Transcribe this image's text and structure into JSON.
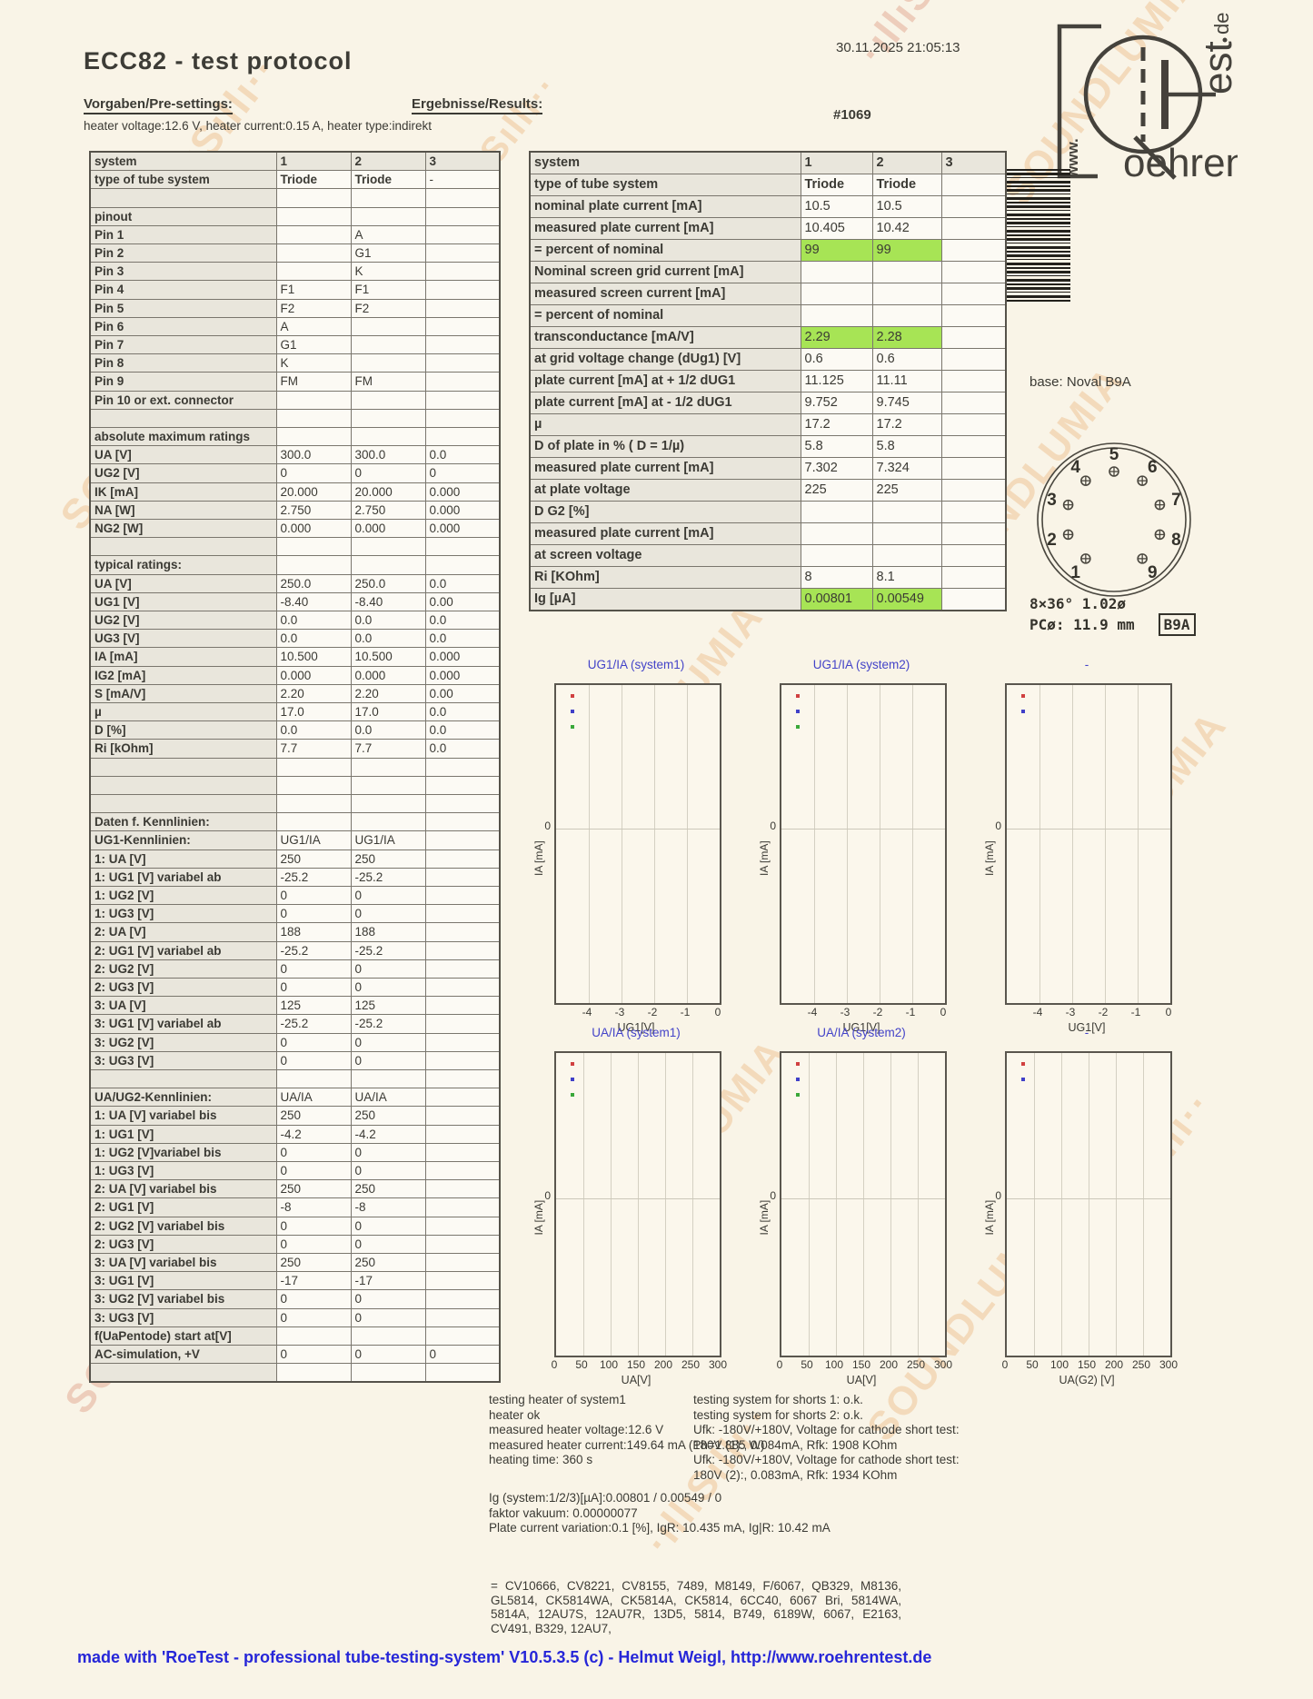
{
  "page": {
    "title": "ECC82  -  test protocol",
    "datetime": "30.11.2025  21:05:13",
    "serial": "#1069",
    "presets_heading": "Vorgaben/Pre-settings:",
    "results_heading": "Ergebnisse/Results:",
    "heater_line": "heater voltage:12.6 V, heater current:0.15 A, heater type:indirekt",
    "base_label": "base: Noval B9A",
    "footer": "made with 'RoeTest - professional tube-testing-system' V10.5.3.5 (c) - Helmut Weigl, http://www.roehrentest.de"
  },
  "logo": {
    "www": "www.",
    "r": "R",
    "oehren": "oehren",
    "est": "est",
    "de": "de"
  },
  "socket": {
    "pins": [
      1,
      2,
      3,
      4,
      5,
      6,
      7,
      8,
      9
    ],
    "geometry_line1": "8×36°  1.02ø",
    "geometry_line2": "PCø: 11.9 mm",
    "base_badge": "B9A"
  },
  "presets_table": {
    "headers": [
      "system",
      "1",
      "2",
      "3"
    ],
    "rows": [
      [
        "type of tube system",
        "Triode",
        "Triode",
        "-"
      ],
      [
        "",
        "",
        "",
        ""
      ],
      [
        "pinout",
        "",
        "",
        ""
      ],
      [
        "Pin 1",
        "",
        "A",
        ""
      ],
      [
        "Pin 2",
        "",
        "G1",
        ""
      ],
      [
        "Pin 3",
        "",
        "K",
        ""
      ],
      [
        "Pin 4",
        "F1",
        "F1",
        ""
      ],
      [
        "Pin 5",
        "F2",
        "F2",
        ""
      ],
      [
        "Pin 6",
        "A",
        "",
        ""
      ],
      [
        "Pin 7",
        "G1",
        "",
        ""
      ],
      [
        "Pin 8",
        "K",
        "",
        ""
      ],
      [
        "Pin 9",
        "FM",
        "FM",
        ""
      ],
      [
        "Pin 10 or ext. connector",
        "",
        "",
        ""
      ],
      [
        "",
        "",
        "",
        ""
      ],
      [
        "absolute maximum ratings",
        "",
        "",
        ""
      ],
      [
        "UA [V]",
        "300.0",
        "300.0",
        "0.0"
      ],
      [
        "UG2 [V]",
        "0",
        "0",
        "0"
      ],
      [
        "IK [mA]",
        "20.000",
        "20.000",
        "0.000"
      ],
      [
        "NA [W]",
        "2.750",
        "2.750",
        "0.000"
      ],
      [
        "NG2 [W]",
        "0.000",
        "0.000",
        "0.000"
      ],
      [
        "",
        "",
        "",
        ""
      ],
      [
        "typical ratings:",
        "",
        "",
        ""
      ],
      [
        "UA [V]",
        "250.0",
        "250.0",
        "0.0"
      ],
      [
        "UG1 [V]",
        "-8.40",
        "-8.40",
        "0.00"
      ],
      [
        "UG2 [V]",
        "0.0",
        "0.0",
        "0.0"
      ],
      [
        "UG3 [V]",
        "0.0",
        "0.0",
        "0.0"
      ],
      [
        "IA [mA]",
        "10.500",
        "10.500",
        "0.000"
      ],
      [
        "IG2 [mA]",
        "0.000",
        "0.000",
        "0.000"
      ],
      [
        "S [mA/V]",
        "2.20",
        "2.20",
        "0.00"
      ],
      [
        "µ",
        "17.0",
        "17.0",
        "0.0"
      ],
      [
        "D [%]",
        "0.0",
        "0.0",
        "0.0"
      ],
      [
        "Ri [kOhm]",
        "7.7",
        "7.7",
        "0.0"
      ],
      [
        "",
        "",
        "",
        ""
      ],
      [
        "",
        "",
        "",
        ""
      ],
      [
        "",
        "",
        "",
        ""
      ],
      [
        "Daten f. Kennlinien:",
        "",
        "",
        ""
      ],
      [
        "UG1-Kennlinien:",
        "UG1/IA",
        "UG1/IA",
        ""
      ],
      [
        "1: UA [V]",
        "250",
        "250",
        ""
      ],
      [
        "1: UG1 [V] variabel ab",
        "-25.2",
        "-25.2",
        ""
      ],
      [
        "1: UG2 [V]",
        "0",
        "0",
        ""
      ],
      [
        "1: UG3 [V]",
        "0",
        "0",
        ""
      ],
      [
        "2: UA [V]",
        "188",
        "188",
        ""
      ],
      [
        "2: UG1 [V] variabel ab",
        "-25.2",
        "-25.2",
        ""
      ],
      [
        "2: UG2 [V]",
        "0",
        "0",
        ""
      ],
      [
        "2: UG3 [V]",
        "0",
        "0",
        ""
      ],
      [
        "3: UA [V]",
        "125",
        "125",
        ""
      ],
      [
        "3: UG1 [V] variabel ab",
        "-25.2",
        "-25.2",
        ""
      ],
      [
        "3: UG2 [V]",
        "0",
        "0",
        ""
      ],
      [
        "3: UG3 [V]",
        "0",
        "0",
        ""
      ],
      [
        "",
        "",
        "",
        ""
      ],
      [
        "UA/UG2-Kennlinien:",
        "UA/IA",
        "UA/IA",
        ""
      ],
      [
        "1: UA [V] variabel bis",
        "250",
        "250",
        ""
      ],
      [
        "1: UG1 [V]",
        "-4.2",
        "-4.2",
        ""
      ],
      [
        "1: UG2 [V]variabel bis",
        "0",
        "0",
        ""
      ],
      [
        "1: UG3 [V]",
        "0",
        "0",
        ""
      ],
      [
        "2: UA [V] variabel bis",
        "250",
        "250",
        ""
      ],
      [
        "2: UG1 [V]",
        "-8",
        "-8",
        ""
      ],
      [
        "2: UG2 [V] variabel bis",
        "0",
        "0",
        ""
      ],
      [
        "2: UG3 [V]",
        "0",
        "0",
        ""
      ],
      [
        "3: UA [V] variabel bis",
        "250",
        "250",
        ""
      ],
      [
        "3: UG1 [V]",
        "-17",
        "-17",
        ""
      ],
      [
        "3: UG2 [V] variabel bis",
        "0",
        "0",
        ""
      ],
      [
        "3: UG3 [V]",
        "0",
        "0",
        ""
      ],
      [
        "f(UaPentode) start at[V]",
        "",
        "",
        ""
      ],
      [
        "AC-simulation, +V",
        "0",
        "0",
        "0"
      ],
      [
        "",
        "",
        "",
        ""
      ]
    ]
  },
  "results_table": {
    "headers": [
      "system",
      "1",
      "2",
      "3"
    ],
    "green_rows": [
      3,
      7,
      19
    ],
    "rows": [
      [
        "type of tube system",
        "Triode",
        "Triode",
        ""
      ],
      [
        "nominal plate current [mA]",
        "10.5",
        "10.5",
        ""
      ],
      [
        "measured plate current [mA]",
        "10.405",
        "10.42",
        ""
      ],
      [
        "= percent of nominal",
        "99",
        "99",
        ""
      ],
      [
        "Nominal screen grid current [mA]",
        "",
        "",
        ""
      ],
      [
        "measured screen current [mA]",
        "",
        "",
        ""
      ],
      [
        "= percent of nominal",
        "",
        "",
        ""
      ],
      [
        "transconductance [mA/V]",
        "2.29",
        "2.28",
        ""
      ],
      [
        "at grid voltage change (dUg1) [V]",
        "0.6",
        "0.6",
        ""
      ],
      [
        "plate current [mA] at + 1/2 dUG1",
        "11.125",
        "11.11",
        ""
      ],
      [
        "plate current [mA] at - 1/2 dUG1",
        "9.752",
        "9.745",
        ""
      ],
      [
        "µ",
        "17.2",
        "17.2",
        ""
      ],
      [
        "D of plate in % ( D = 1/µ)",
        "5.8",
        "5.8",
        ""
      ],
      [
        "measured plate current [mA]",
        "7.302",
        "7.324",
        ""
      ],
      [
        "at plate voltage",
        "225",
        "225",
        ""
      ],
      [
        "D G2 [%]",
        "",
        "",
        ""
      ],
      [
        "measured plate current [mA]",
        "",
        "",
        ""
      ],
      [
        "at screen voltage",
        "",
        "",
        ""
      ],
      [
        "Ri [KOhm]",
        "8",
        "8.1",
        ""
      ],
      [
        "Ig [µA]",
        "0.00801",
        "0.00549",
        ""
      ]
    ]
  },
  "charts": [
    {
      "title": "UG1/IA (system1)",
      "ylabel": "IA [mA]",
      "ytick": "0",
      "xlabel": "UG1[V]",
      "xticks": [
        "-4",
        "-3",
        "-2",
        "-1",
        "0"
      ],
      "dots": [
        "#d04040",
        "#4040c8",
        "#3aa83a"
      ]
    },
    {
      "title": "UG1/IA (system2)",
      "ylabel": "IA [mA]",
      "ytick": "0",
      "xlabel": "UG1[V]",
      "xticks": [
        "-4",
        "-3",
        "-2",
        "-1",
        "0"
      ],
      "dots": [
        "#d04040",
        "#4040c8",
        "#3aa83a"
      ]
    },
    {
      "title": "-",
      "ylabel": "IA [mA]",
      "ytick": "0",
      "xlabel": "UG1[V]",
      "xticks": [
        "-4",
        "-3",
        "-2",
        "-1",
        "0"
      ],
      "dots": [
        "#d04040",
        "#4040c8"
      ]
    },
    {
      "title": "UA/IA (system1)",
      "ylabel": "IA [mA]",
      "ytick": "0",
      "xlabel": "UA[V]",
      "xticks": [
        "0",
        "50",
        "100",
        "150",
        "200",
        "250",
        "300"
      ],
      "dots": [
        "#d04040",
        "#4040c8",
        "#3aa83a"
      ]
    },
    {
      "title": "UA/IA (system2)",
      "ylabel": "IA [mA]",
      "ytick": "0",
      "xlabel": "UA[V]",
      "xticks": [
        "0",
        "50",
        "100",
        "150",
        "200",
        "250",
        "300"
      ],
      "dots": [
        "#d04040",
        "#4040c8",
        "#3aa83a"
      ]
    },
    {
      "title": "-",
      "ylabel": "IA [mA]",
      "ytick": "0",
      "xlabel": "UA(G2) [V]",
      "xticks": [
        "0",
        "50",
        "100",
        "150",
        "200",
        "250",
        "300"
      ],
      "dots": [
        "#d04040",
        "#4040c8"
      ]
    }
  ],
  "notes_left": [
    "testing heater of system1",
    "heater ok",
    "measured heater voltage:12.6 V",
    "measured heater current:149.64 mA (Ph=1.885 W)",
    "heating time: 360 s"
  ],
  "notes_right": [
    "testing system for shorts 1: o.k.",
    "testing system for shorts 2: o.k.",
    "Ufk: -180V/+180V, Voltage for cathode short test:",
    "180V (1):, 0.084mA, Rfk: 1908 KOhm",
    "Ufk: -180V/+180V, Voltage for cathode short test:",
    "180V (2):, 0.083mA, Rfk: 1934 KOhm"
  ],
  "notes_ig": [
    "Ig (system:1/2/3)[µA]:0.00801 / 0.00549 / 0",
    "faktor vakuum: 0.00000077",
    "Plate current variation:0.1 [%], IgR: 10.435 mA, Ig|R: 10.42 mA"
  ],
  "equivalents": "= CV10666,  CV8221,  CV8155,  7489,  M8149,  F/6067,  QB329,  M8136,  GL5814,  CK5814WA, CK5814A,  CK5814,  6CC40,  6067 Bri,  5814WA,  5814A,  12AU7S,  12AU7R,  13D5,  5814,  B749, 6189W,  6067,  E2163,  CV491,  B329,  12AU7,",
  "watermark": {
    "texts": [
      "SOUNDLUMIA",
      "·ıllıSıllı··"
    ]
  },
  "colors": {
    "highlight_green": "#a7e455",
    "chart_title_blue": "#4343c8",
    "footer_blue": "#2626d8",
    "watermark_orange": "#e49a4e",
    "paper": "#f9f4e7"
  }
}
